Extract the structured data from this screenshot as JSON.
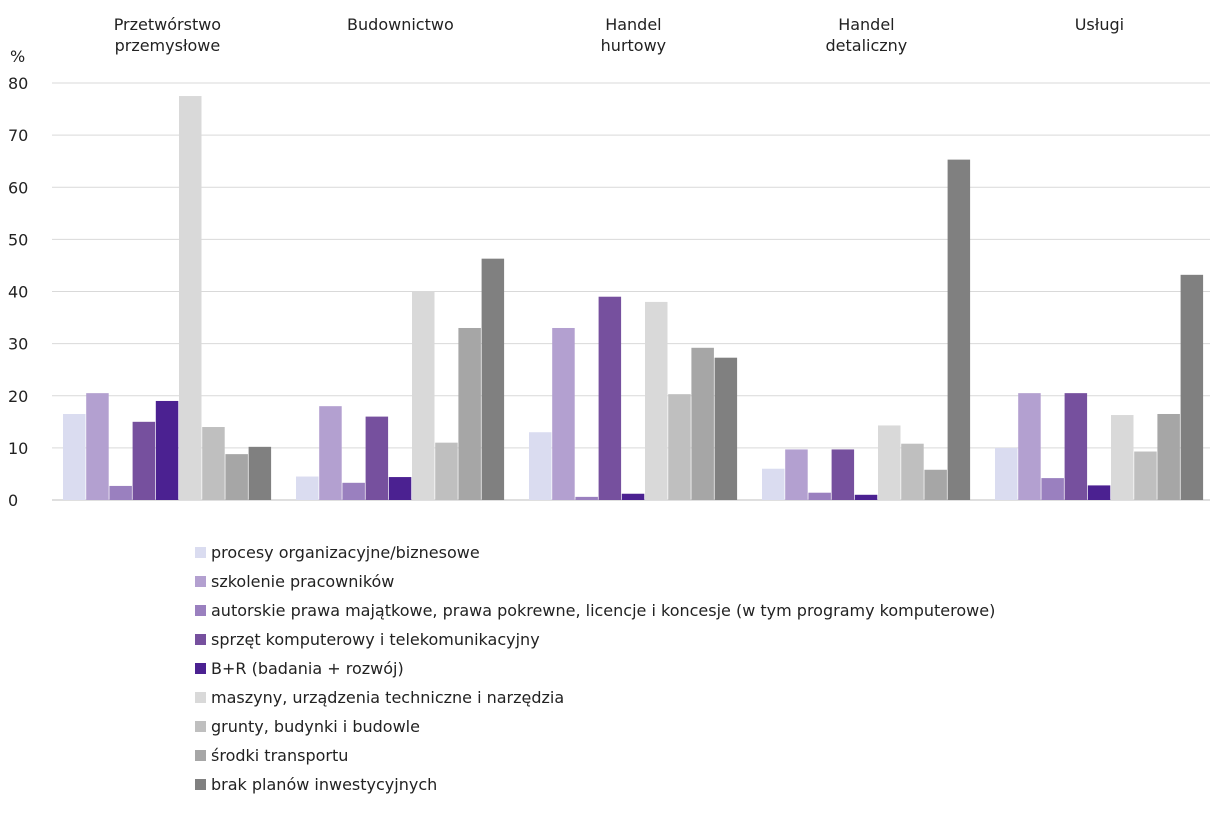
{
  "chart_data": {
    "type": "bar",
    "ylabel": "%",
    "ylim": [
      0,
      80
    ],
    "yticks": [
      0,
      10,
      20,
      30,
      40,
      50,
      60,
      70,
      80
    ],
    "grid": true,
    "legend_position": "bottom",
    "categories": [
      "Przetwórstwo przemysłowe",
      "Budownictwo",
      "Handel hurtowy",
      "Handel detaliczny",
      "Usługi"
    ],
    "series": [
      {
        "name": "procesy organizacyjne/biznesowe",
        "color": "#dadcf0",
        "values": [
          16.5,
          4.5,
          13.0,
          6.0,
          10.0
        ]
      },
      {
        "name": "szkolenie pracowników",
        "color": "#b3a0d0",
        "values": [
          20.5,
          18.0,
          33.0,
          9.7,
          20.5
        ]
      },
      {
        "name": "autorskie prawa majątkowe, prawa pokrewne, licencje i koncesje (w tym programy komputerowe)",
        "color": "#9a80bf",
        "values": [
          2.7,
          3.3,
          0.6,
          1.4,
          4.2
        ]
      },
      {
        "name": "sprzęt komputerowy i telekomunikacyjny",
        "color": "#76509e",
        "values": [
          15.0,
          16.0,
          39.0,
          9.7,
          20.5
        ]
      },
      {
        "name": "B+R (badania + rozwój)",
        "color": "#4b2191",
        "values": [
          19.0,
          4.4,
          1.2,
          1.0,
          2.8
        ]
      },
      {
        "name": "maszyny, urządzenia techniczne i narzędzia",
        "color": "#d9d9d9",
        "values": [
          77.5,
          40.0,
          38.0,
          14.3,
          16.3
        ]
      },
      {
        "name": "grunty, budynki i budowle",
        "color": "#bfbfbf",
        "values": [
          14.0,
          11.0,
          20.3,
          10.8,
          9.3
        ]
      },
      {
        "name": "środki transportu",
        "color": "#a6a6a6",
        "values": [
          8.8,
          33.0,
          29.2,
          5.8,
          16.5
        ]
      },
      {
        "name": "brak planów inwestycyjnych",
        "color": "#808080",
        "values": [
          10.2,
          46.3,
          27.3,
          65.3,
          43.2
        ]
      }
    ]
  }
}
